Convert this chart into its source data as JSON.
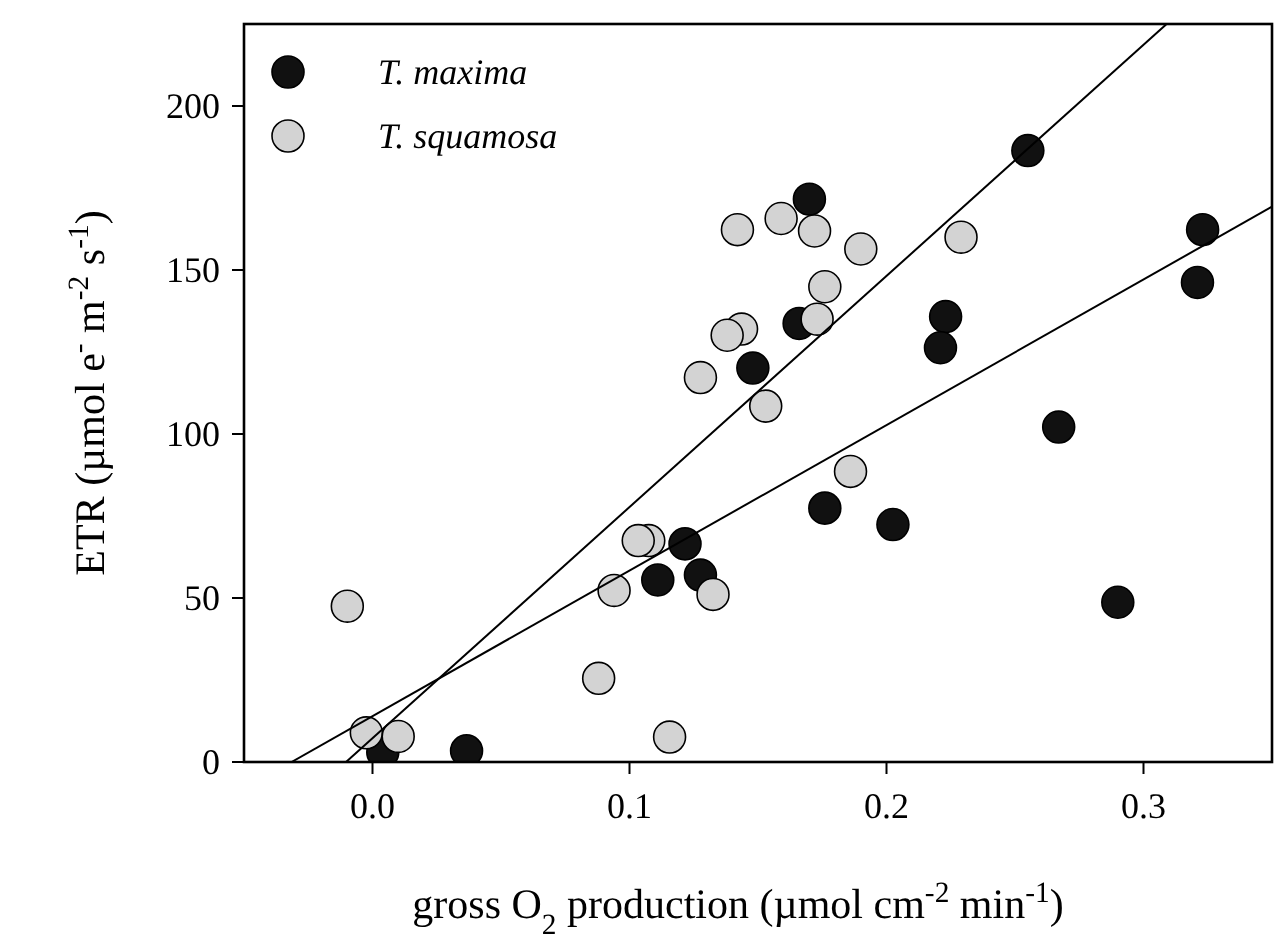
{
  "chart_data": {
    "type": "scatter",
    "xlabel": "gross O$_{2}$ production (µmol  cm$^{-2}$ min$^{-1}$)",
    "ylabel": "ETR (µmol e$^{-}$ m$^{-2}$ s$^{-1}$)",
    "xlim": [
      -0.05,
      0.35
    ],
    "ylim": [
      0,
      225
    ],
    "xticks": [
      {
        "value": 0,
        "label": "0.0"
      },
      {
        "value": 0.1,
        "label": "0.1"
      },
      {
        "value": 0.2,
        "label": "0.2"
      },
      {
        "value": 0.3,
        "label": "0.3"
      }
    ],
    "yticks": [
      0,
      50,
      100,
      150,
      200
    ],
    "grid": false,
    "legend": "top left",
    "marker": "circle",
    "series": [
      {
        "name": "T. maxima",
        "color": "#111111",
        "x": [
          0.255,
          0.17,
          0.323,
          0.321,
          0.223,
          0.221,
          0.166,
          0.148,
          0.267,
          0.176,
          0.2025,
          0.29,
          0.1216,
          0.111,
          0.1276,
          0.004,
          0.0366
        ],
        "values": [
          186.4,
          171.6,
          162.3,
          146.2,
          135.8,
          126.3,
          133.7,
          120.1,
          102.1,
          77.4,
          72.4,
          48.7,
          66.5,
          55.5,
          57,
          3,
          3.4
        ]
      },
      {
        "name": "T. squamosa",
        "color": "#d3d3d3",
        "x": [
          0.142,
          0.159,
          0.172,
          0.19,
          0.229,
          0.176,
          0.173,
          0.1436,
          0.138,
          0.1276,
          0.153,
          0.186,
          0.1075,
          0.1034,
          0.094,
          0.1325,
          -0.0098,
          0.088,
          0.1156,
          -0.0024,
          0.01
        ],
        "values": [
          162.3,
          165.7,
          161.9,
          156.4,
          160,
          144.9,
          135,
          132,
          130.1,
          117.2,
          108.5,
          88.6,
          67.5,
          67.5,
          52.3,
          51.1,
          47.5,
          25.5,
          7.6,
          8.9,
          7.8
        ]
      },
      {
        "type": "line",
        "color": "#000000",
        "marker": "none",
        "x": [
          -0.0103,
          0.309
        ],
        "values": [
          0,
          225
        ]
      },
      {
        "type": "line",
        "color": "#000000",
        "marker": "none",
        "x": [
          -0.0315,
          0.35
        ],
        "values": [
          0,
          169.3
        ]
      }
    ]
  }
}
